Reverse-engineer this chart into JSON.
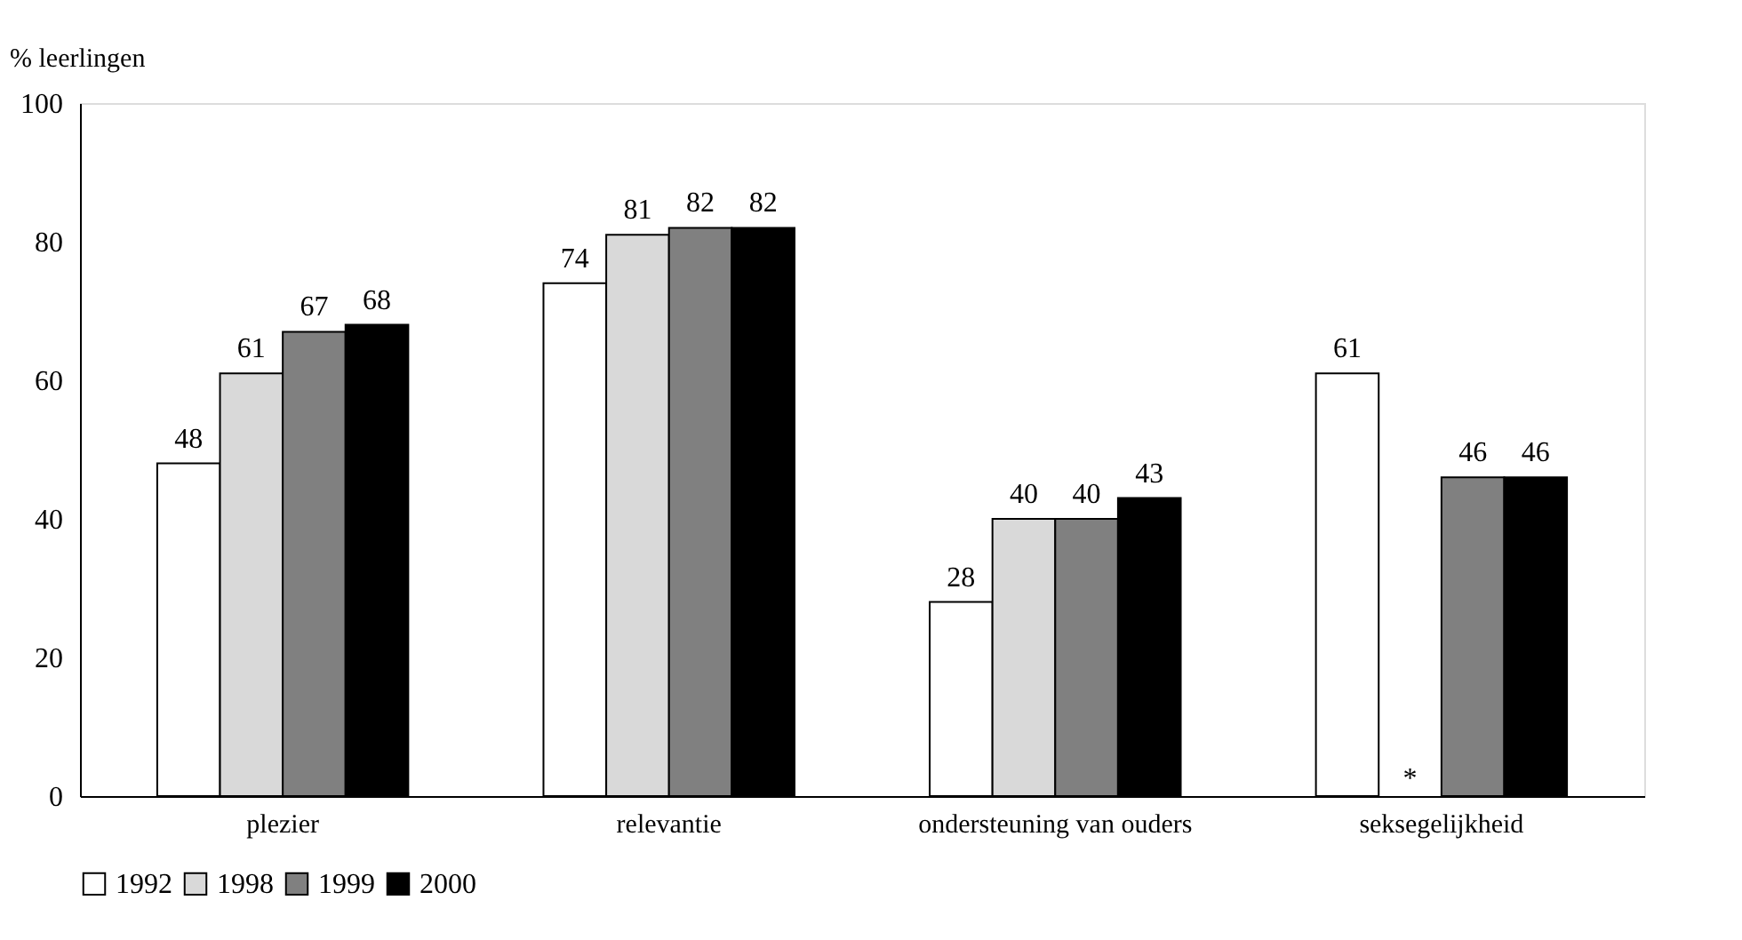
{
  "chart_data": {
    "type": "bar",
    "ylabel": "% leerlingen",
    "categories": [
      "plezier",
      "relevantie",
      "ondersteuning van ouders",
      "seksegelijkheid"
    ],
    "series": [
      {
        "name": "1992",
        "color": "#ffffff",
        "values": [
          48,
          74,
          28,
          61
        ]
      },
      {
        "name": "1998",
        "color": "#d9d9d9",
        "values": [
          61,
          81,
          40,
          null
        ]
      },
      {
        "name": "1999",
        "color": "#808080",
        "values": [
          67,
          82,
          40,
          46
        ]
      },
      {
        "name": "2000",
        "color": "#000000",
        "values": [
          68,
          82,
          43,
          46
        ]
      }
    ],
    "ylim": [
      0,
      100
    ],
    "yticks": [
      0,
      20,
      40,
      60,
      80,
      100
    ],
    "data_labels": true,
    "grid": false,
    "legend": "bottom",
    "annotations": [
      {
        "text": "*",
        "x": "seksegelijkheid",
        "y": 0
      }
    ]
  }
}
